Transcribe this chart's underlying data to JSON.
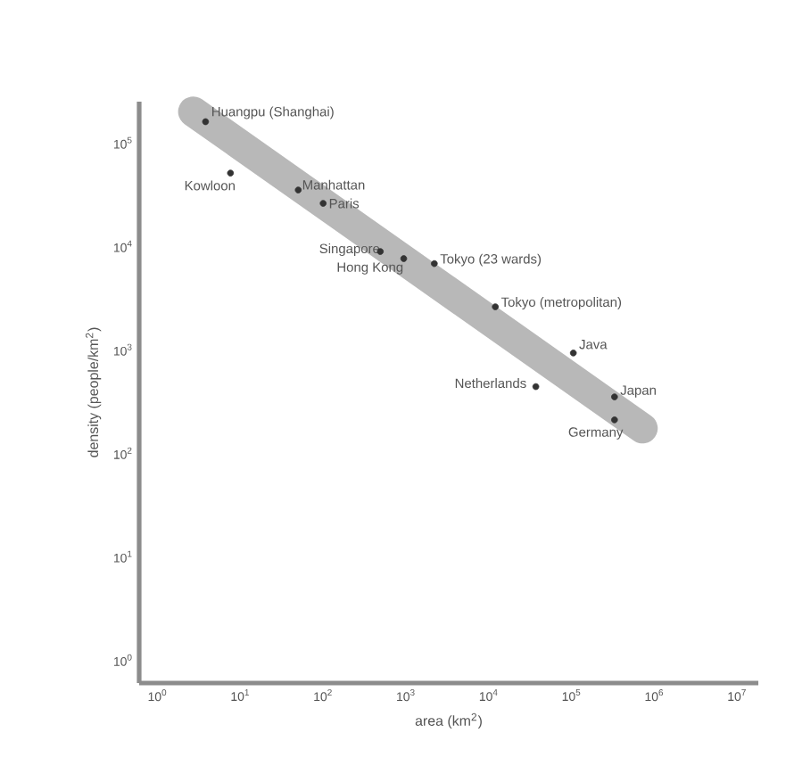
{
  "chart_data": {
    "type": "scatter",
    "xlabel": "area (km$^{2}$)",
    "ylabel": "density (people/km$^{2}$)",
    "log": "xy",
    "xlim": [
      0.6,
      18000000
    ],
    "ylim": [
      0.6,
      250000
    ],
    "xticks": [
      {
        "value": 1,
        "label": "10$^{0}$"
      },
      {
        "value": 10,
        "label": "10$^{1}$"
      },
      {
        "value": 100,
        "label": "10$^{2}$"
      },
      {
        "value": 1000,
        "label": "10$^{3}$"
      },
      {
        "value": 10000,
        "label": "10$^{4}$"
      },
      {
        "value": 100000,
        "label": "10$^{5}$"
      },
      {
        "value": 1000000,
        "label": "10$^{6}$"
      },
      {
        "value": 10000000,
        "label": "10$^{7}$"
      }
    ],
    "yticks": [
      {
        "value": 1,
        "label": "10$^{0}$"
      },
      {
        "value": 10,
        "label": "10$^{1}$"
      },
      {
        "value": 100,
        "label": "10$^{2}$"
      },
      {
        "value": 1000,
        "label": "10$^{3}$"
      },
      {
        "value": 10000,
        "label": "10$^{4}$"
      },
      {
        "value": 100000,
        "label": "10$^{5}$"
      }
    ],
    "series": [
      {
        "color": "#333333",
        "marker": "circle",
        "x": [
          3.8,
          7.6,
          50,
          100,
          490,
          940,
          2200,
          12000,
          105000,
          37000,
          330000,
          330000
        ],
        "values": [
          160000,
          51000,
          35000,
          26000,
          8900,
          7600,
          6800,
          2600,
          930,
          440,
          350,
          210
        ]
      },
      {
        "type": "line",
        "marker": "none",
        "color": "#b8b8b8",
        "x": [
          2.7,
          720000
        ],
        "values": [
          200000,
          174
        ]
      }
    ],
    "annotations": [
      {
        "text": "Huangpu (Shanghai)",
        "x": 3.8,
        "y": 160000
      },
      {
        "text": "Kowloon",
        "x": 7.6,
        "y": 51000
      },
      {
        "text": "Manhattan",
        "x": 50,
        "y": 35000
      },
      {
        "text": "Paris",
        "x": 100,
        "y": 26000
      },
      {
        "text": "Singapore",
        "x": 490,
        "y": 8900
      },
      {
        "text": "Hong Kong",
        "x": 940,
        "y": 7600
      },
      {
        "text": "Tokyo (23 wards)",
        "x": 2200,
        "y": 6800
      },
      {
        "text": "Tokyo (metropolitan)",
        "x": 12000,
        "y": 2600
      },
      {
        "text": "Java",
        "x": 105000,
        "y": 930
      },
      {
        "text": "Netherlands",
        "x": 37000,
        "y": 440
      },
      {
        "text": "Japan",
        "x": 330000,
        "y": 350
      },
      {
        "text": "Germany",
        "x": 330000,
        "y": 210
      }
    ]
  }
}
